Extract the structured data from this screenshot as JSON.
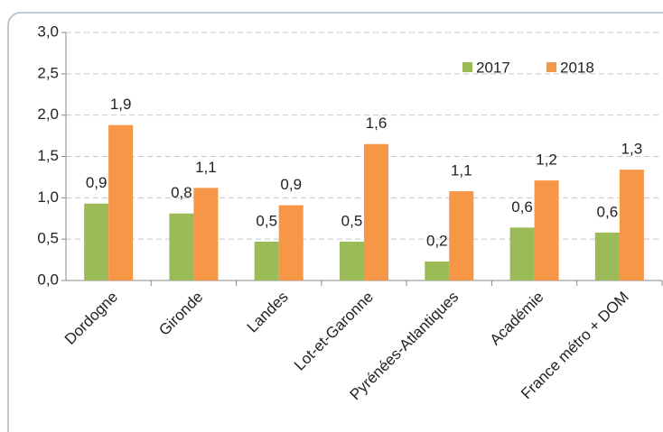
{
  "chart_data": {
    "type": "bar",
    "categories": [
      "Dordogne",
      "Gironde",
      "Landes",
      "Lot-et-Garonne",
      "Pyrénées-Atlantiques",
      "Académie",
      "France métro + DOM"
    ],
    "series": [
      {
        "name": "2017",
        "color": "#9bbb59",
        "values": [
          0.93,
          0.81,
          0.47,
          0.47,
          0.23,
          0.64,
          0.58
        ],
        "value_labels": [
          "0,9",
          "0,8",
          "0,5",
          "0,5",
          "0,2",
          "0,6",
          "0,6"
        ]
      },
      {
        "name": "2018",
        "color": "#f79646",
        "values": [
          1.88,
          1.12,
          0.91,
          1.65,
          1.08,
          1.21,
          1.34
        ],
        "value_labels": [
          "1,9",
          "1,1",
          "0,9",
          "1,6",
          "1,1",
          "1,2",
          "1,3"
        ]
      }
    ],
    "ylim": [
      0,
      3
    ],
    "yticks": [
      {
        "value": 0,
        "label": "0,0"
      },
      {
        "value": 0.5,
        "label": "0,5"
      },
      {
        "value": 1,
        "label": "1,0"
      },
      {
        "value": 1.5,
        "label": "1,5"
      },
      {
        "value": 2,
        "label": "2,0"
      },
      {
        "value": 2.5,
        "label": "2,5"
      },
      {
        "value": 3,
        "label": "3,0"
      }
    ],
    "grid": true,
    "legend": "top-right"
  }
}
